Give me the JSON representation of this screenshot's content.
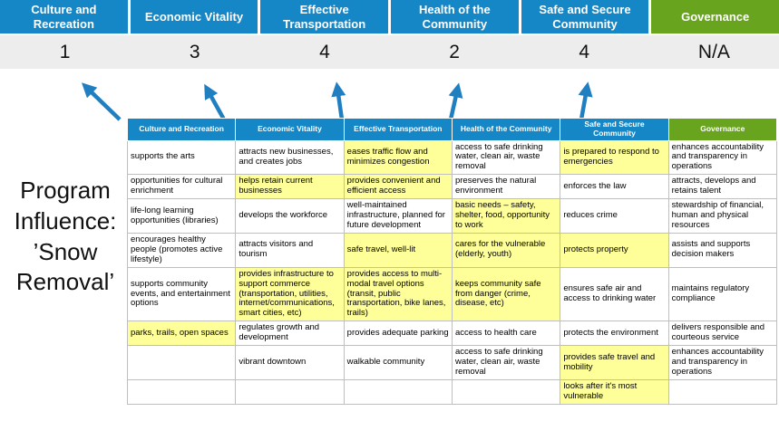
{
  "page": {
    "program_label": "Program Influence: ’Snow Removal’"
  },
  "colors": {
    "header-blue": "#1586c6",
    "header-green": "#69a41f",
    "highlight-yellow": "#ffff99",
    "score-band-gray": "#ededed",
    "border-gray": "#bfbfbf",
    "arrow-blue": "#1f7fc0"
  },
  "summary": {
    "columns": [
      {
        "label": "Culture and Recreation",
        "score": "1",
        "theme": "blue"
      },
      {
        "label": "Economic Vitality",
        "score": "3",
        "theme": "blue"
      },
      {
        "label": "Effective Transportation",
        "score": "4",
        "theme": "blue"
      },
      {
        "label": "Health of the Community",
        "score": "2",
        "theme": "blue"
      },
      {
        "label": "Safe and Secure Community",
        "score": "4",
        "theme": "blue"
      },
      {
        "label": "Governance",
        "score": "N/A",
        "theme": "green"
      }
    ]
  },
  "matrix": {
    "headers": [
      {
        "label": "Culture and Recreation",
        "theme": "blue"
      },
      {
        "label": "Economic Vitality",
        "theme": "blue"
      },
      {
        "label": "Effective Transportation",
        "theme": "blue"
      },
      {
        "label": "Health of the Community",
        "theme": "blue"
      },
      {
        "label": "Safe and Secure Community",
        "theme": "blue"
      },
      {
        "label": "Governance",
        "theme": "green"
      }
    ],
    "rows": [
      [
        {
          "text": "supports the arts",
          "hl": false
        },
        {
          "text": "attracts new businesses, and creates jobs",
          "hl": false
        },
        {
          "text": "eases traffic flow and minimizes congestion",
          "hl": true
        },
        {
          "text": "access to safe drinking water, clean air, waste removal",
          "hl": false
        },
        {
          "text": "is prepared to respond to emergencies",
          "hl": true
        },
        {
          "text": "enhances accountability and transparency in operations",
          "hl": false
        }
      ],
      [
        {
          "text": "opportunities for cultural enrichment",
          "hl": false
        },
        {
          "text": "helps retain current businesses",
          "hl": true
        },
        {
          "text": "provides convenient and efficient access",
          "hl": true
        },
        {
          "text": "preserves the natural environment",
          "hl": false
        },
        {
          "text": "enforces the law",
          "hl": false
        },
        {
          "text": "attracts, develops and retains talent",
          "hl": false
        }
      ],
      [
        {
          "text": "life-long learning opportunities (libraries)",
          "hl": false
        },
        {
          "text": "develops the workforce",
          "hl": false
        },
        {
          "text": "well-maintained infrastructure, planned for future development",
          "hl": false
        },
        {
          "text": "basic needs – safety, shelter, food, opportunity to work",
          "hl": true
        },
        {
          "text": "reduces crime",
          "hl": false
        },
        {
          "text": "stewardship of financial, human and physical resources",
          "hl": false
        }
      ],
      [
        {
          "text": "encourages healthy people (promotes active lifestyle)",
          "hl": false
        },
        {
          "text": "attracts visitors and tourism",
          "hl": false
        },
        {
          "text": "safe travel, well-lit",
          "hl": true
        },
        {
          "text": "cares for the vulnerable (elderly, youth)",
          "hl": true
        },
        {
          "text": "protects property",
          "hl": true
        },
        {
          "text": "assists and supports decision makers",
          "hl": false
        }
      ],
      [
        {
          "text": "supports community events, and entertainment options",
          "hl": false
        },
        {
          "text": "provides infrastructure to support commerce (transportation, utilities, internet/communications, smart cities, etc)",
          "hl": true
        },
        {
          "text": "provides access to multi-modal travel options (transit, public transportation, bike lanes, trails)",
          "hl": true
        },
        {
          "text": "keeps community safe from danger (crime, disease, etc)",
          "hl": true
        },
        {
          "text": "ensures safe air and access to drinking water",
          "hl": false
        },
        {
          "text": "maintains regulatory compliance",
          "hl": false
        }
      ],
      [
        {
          "text": "parks, trails, open spaces",
          "hl": true
        },
        {
          "text": "regulates growth and development",
          "hl": false
        },
        {
          "text": "provides adequate parking",
          "hl": false
        },
        {
          "text": "access to health care",
          "hl": false
        },
        {
          "text": "protects the environment",
          "hl": false
        },
        {
          "text": "delivers responsible and courteous service",
          "hl": false
        }
      ],
      [
        {
          "text": "",
          "hl": false
        },
        {
          "text": "vibrant downtown",
          "hl": false
        },
        {
          "text": "walkable community",
          "hl": false
        },
        {
          "text": "access to safe drinking water, clean air, waste removal",
          "hl": false
        },
        {
          "text": "provides safe travel and mobility",
          "hl": true
        },
        {
          "text": "enhances accountability and transparency in operations",
          "hl": false
        }
      ],
      [
        {
          "text": "",
          "hl": false
        },
        {
          "text": "",
          "hl": false
        },
        {
          "text": "",
          "hl": false
        },
        {
          "text": "",
          "hl": false
        },
        {
          "text": "looks after it's most vulnerable",
          "hl": true
        },
        {
          "text": "",
          "hl": false
        }
      ]
    ]
  }
}
